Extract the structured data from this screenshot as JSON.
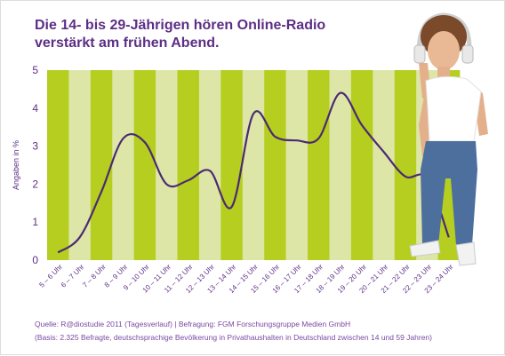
{
  "title_line1": "Die 14- bis 29-Jährigen hören Online-Radio",
  "title_line2": "verstärkt am frühen Abend.",
  "source_line1": "Quelle: R@diostudie 2011 (Tagesverlauf) | Befragung: FGM Forschungsgruppe Medien GmbH",
  "source_line2": "(Basis: 2.325 Befragte, deutschsprachige Bevölkerung in Privathaushalten in Deutschland zwischen 14 und 59 Jahren)",
  "colors": {
    "title": "#5c2e86",
    "line": "#4b2a73",
    "band_dark": "#b5ce1f",
    "band_light": "#dde6a7"
  },
  "chart_data": {
    "type": "line",
    "ylabel": "Angaben in %",
    "ylim": [
      0,
      5
    ],
    "yticks": [
      "0",
      "1",
      "2",
      "3",
      "4",
      "5"
    ],
    "categories": [
      "5 – 6 Uhr",
      "6 – 7 Uhr",
      "7 – 8 Uhr",
      "8 – 9 Uhr",
      "9 – 10 Uhr",
      "10 – 11 Uhr",
      "11 – 12 Uhr",
      "12 – 13 Uhr",
      "13 – 14 Uhr",
      "14 – 15 Uhr",
      "15 – 16 Uhr",
      "16 – 17 Uhr",
      "17 – 18 Uhr",
      "18 – 19 Uhr",
      "19 – 20 Uhr",
      "20 – 21 Uhr",
      "21 – 22 Uhr",
      "22 – 23 Uhr",
      "23 – 24 Uhr"
    ],
    "values": [
      0.2,
      0.6,
      1.8,
      3.2,
      3.1,
      2.0,
      2.1,
      2.35,
      1.4,
      3.85,
      3.25,
      3.15,
      3.2,
      4.4,
      3.55,
      2.85,
      2.2,
      2.15,
      0.6
    ],
    "grid": false
  }
}
